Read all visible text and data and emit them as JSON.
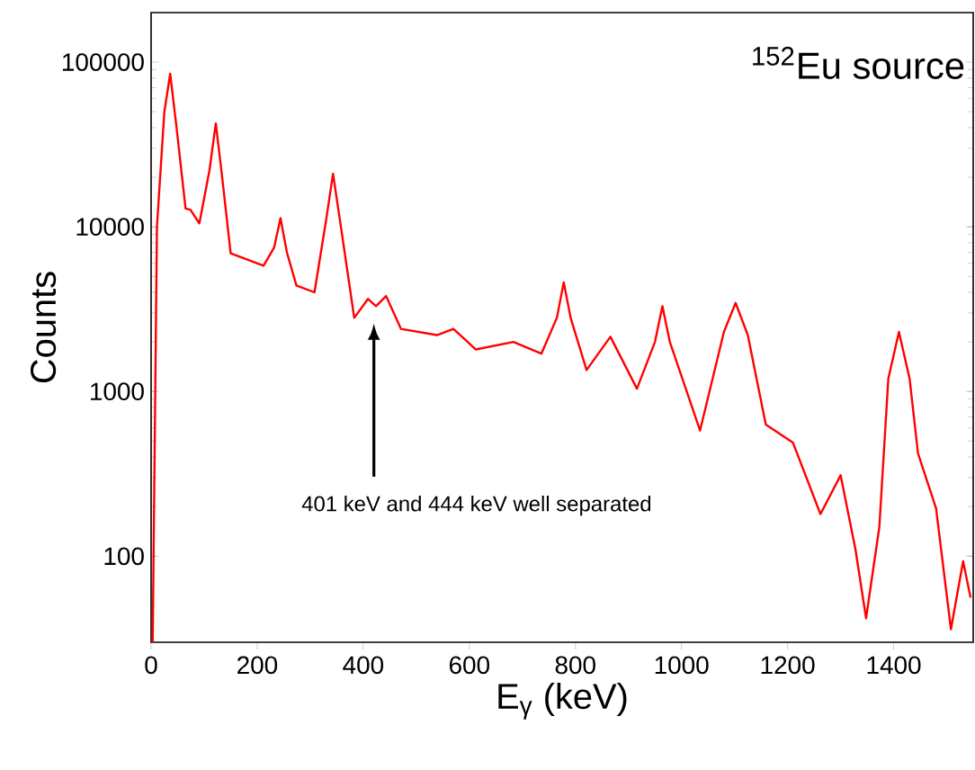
{
  "chart_data": {
    "type": "line",
    "title": "$^{152}$Eu source",
    "xlabel": "E$_{γ}$ (keV)",
    "ylabel": "Counts",
    "x": [
      3,
      11,
      25,
      36,
      48,
      65,
      74,
      91,
      110,
      122,
      134,
      150,
      212,
      232,
      244,
      256,
      274,
      308,
      330,
      343,
      356,
      383,
      409,
      424,
      443,
      471,
      539,
      570,
      612,
      683,
      736,
      765,
      778,
      791,
      821,
      866,
      916,
      950,
      964,
      978,
      1035,
      1080,
      1102,
      1125,
      1159,
      1210,
      1262,
      1300,
      1328,
      1348,
      1373,
      1390,
      1410,
      1430,
      1446,
      1480,
      1508,
      1531,
      1545
    ],
    "series": [
      {
        "color": "#ff0000",
        "values": [
          30,
          10000,
          50000,
          85000,
          40000,
          12900,
          12700,
          10500,
          22000,
          42500,
          20000,
          6900,
          5800,
          7500,
          11300,
          7000,
          4400,
          4000,
          11000,
          21000,
          11000,
          2800,
          3650,
          3300,
          3800,
          2400,
          2200,
          2400,
          1800,
          2000,
          1700,
          2800,
          4600,
          2800,
          1350,
          2150,
          1040,
          2000,
          3300,
          2000,
          580,
          2300,
          3450,
          2200,
          630,
          490,
          180,
          310,
          110,
          42,
          150,
          1200,
          2300,
          1200,
          420,
          195,
          36,
          93,
          56
        ]
      }
    ],
    "xlim": [
      0,
      1550
    ],
    "ylim": [
      30,
      200000
    ],
    "xticks": [
      0,
      200,
      400,
      600,
      800,
      1000,
      1200,
      1400
    ],
    "yticks": [
      100,
      1000,
      10000,
      100000
    ],
    "log": "y",
    "grid": false,
    "marker": "none",
    "line_style": "solid",
    "annotations": [
      "401 keV and 444 keV well separated"
    ]
  }
}
